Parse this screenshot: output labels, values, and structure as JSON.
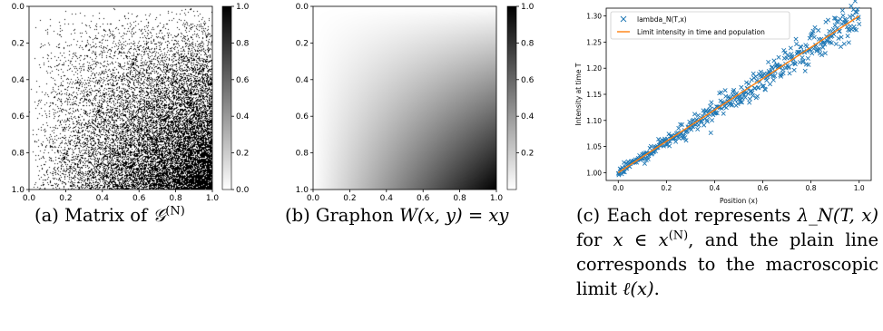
{
  "colors": {
    "series_marker": "#1f77b4",
    "limit_line": "#ff7f0e",
    "axis": "#000000"
  },
  "panels": {
    "a": {
      "x_ticks": [
        "0.0",
        "0.2",
        "0.4",
        "0.6",
        "0.8",
        "1.0"
      ],
      "y_ticks": [
        "0.0",
        "0.2",
        "0.4",
        "0.6",
        "0.8",
        "1.0"
      ],
      "colorbar_ticks": [
        "1.0",
        "0.8",
        "0.6",
        "0.4",
        "0.2",
        "0.0"
      ],
      "caption": {
        "label": "(a)",
        "text": "Matrix of",
        "symbol": "𝒢",
        "sup": "(N)"
      }
    },
    "b": {
      "x_ticks": [
        "0.0",
        "0.2",
        "0.4",
        "0.6",
        "0.8",
        "1.0"
      ],
      "y_ticks": [
        "0.0",
        "0.2",
        "0.4",
        "0.6",
        "0.8",
        "1.0"
      ],
      "colorbar_ticks": [
        "1.0",
        "0.8",
        "0.6",
        "0.4",
        "0.2"
      ],
      "caption": {
        "label": "(b)",
        "text": "Graphon",
        "formula": "W(x, y) = xy"
      }
    },
    "c": {
      "caption": {
        "label": "(c)",
        "line1": "Each dot represents",
        "formula1": "λ_N(T, x)",
        "mid1": "for",
        "formula2": "x ∈ x",
        "sup2": "(N)",
        "mid2": ", and the plain line corresponds to the macroscopic limit",
        "formula3": "ℓ(x)",
        "end": "."
      }
    }
  },
  "chart_data": [
    {
      "type": "heatmap",
      "description_values": "random 0/1 adjacency matrix with density increasing toward bottom-right",
      "x_range": [
        0.0,
        1.0
      ],
      "y_range": [
        0.0,
        1.0
      ],
      "colorbar_range": [
        0.0,
        1.0
      ],
      "colormap": "gray_r"
    },
    {
      "type": "heatmap",
      "function": "W(x,y)=xy",
      "x_range": [
        0.0,
        1.0
      ],
      "y_range": [
        0.0,
        1.0
      ],
      "colorbar_range": [
        0.0,
        1.0
      ],
      "colormap": "gray_r"
    },
    {
      "type": "scatter",
      "ylabel": "Intensity at time T",
      "xlabel": "Position (x)",
      "xlim": [
        -0.05,
        1.05
      ],
      "ylim": [
        0.985,
        1.315
      ],
      "x_ticks": [
        "0.0",
        "0.2",
        "0.4",
        "0.6",
        "0.8",
        "1.0"
      ],
      "y_ticks": [
        "1.00",
        "1.05",
        "1.10",
        "1.15",
        "1.20",
        "1.25",
        "1.30"
      ],
      "legend_position": "upper-left",
      "series": [
        {
          "name": "lambda_N(T,x)",
          "kind": "scatter",
          "marker": "x",
          "trend": {
            "intercept": 1.0,
            "slope": 0.3
          },
          "noise_sd": 0.012,
          "count": 420
        },
        {
          "name": "Limit intensity in time and population",
          "kind": "line",
          "x": [
            0.0,
            1.0
          ],
          "y": [
            1.0,
            1.3
          ]
        }
      ]
    }
  ]
}
